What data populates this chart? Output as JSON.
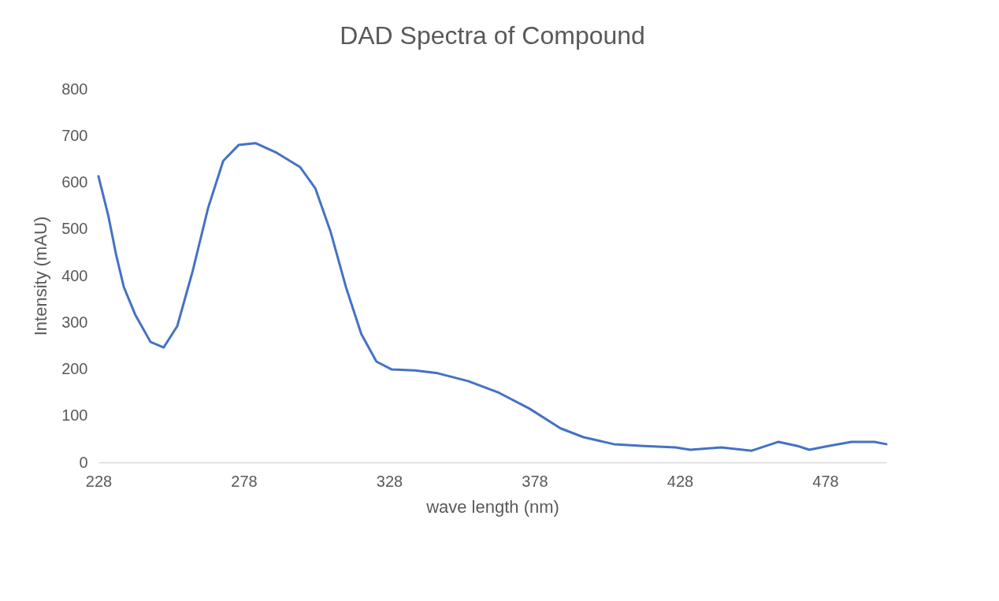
{
  "chart_data": {
    "type": "line",
    "title": "DAD Spectra of Compound",
    "xlabel": "wave length (nm)",
    "ylabel": "Intensity  (mAU)",
    "xlim": [
      228,
      499
    ],
    "xticks": [
      228,
      278,
      328,
      378,
      428,
      478
    ],
    "ylim": [
      0,
      800
    ],
    "yticks": [
      0,
      100,
      200,
      300,
      400,
      500,
      600,
      700,
      800
    ],
    "grid": false,
    "legend": false,
    "marker": "none",
    "line_style": "solid",
    "series": [
      {
        "color": "#4472c4",
        "x": [
          228,
          231.4,
          234.1,
          236.7,
          240.6,
          245.9,
          250.4,
          255.1,
          260.4,
          265.7,
          270.9,
          276.2,
          282,
          289.4,
          297.3,
          302.6,
          307.8,
          313.1,
          318.4,
          323.6,
          328.9,
          336.8,
          344.7,
          355.2,
          365.8,
          376.3,
          386.9,
          394.8,
          405.3,
          415.8,
          426.4,
          431.6,
          442.2,
          452.7,
          461.9,
          468.5,
          472.5,
          479,
          487,
          494.9,
          499
        ],
        "values": [
          613,
          528,
          444,
          376,
          317,
          258,
          246,
          292,
          410,
          545,
          646,
          680,
          684,
          663,
          633,
          587,
          495,
          376,
          275,
          216,
          199,
          197,
          191,
          174,
          149,
          115,
          73,
          54,
          39,
          35,
          32,
          27,
          32,
          25,
          44,
          35,
          27,
          35,
          44,
          44,
          39
        ]
      }
    ]
  }
}
